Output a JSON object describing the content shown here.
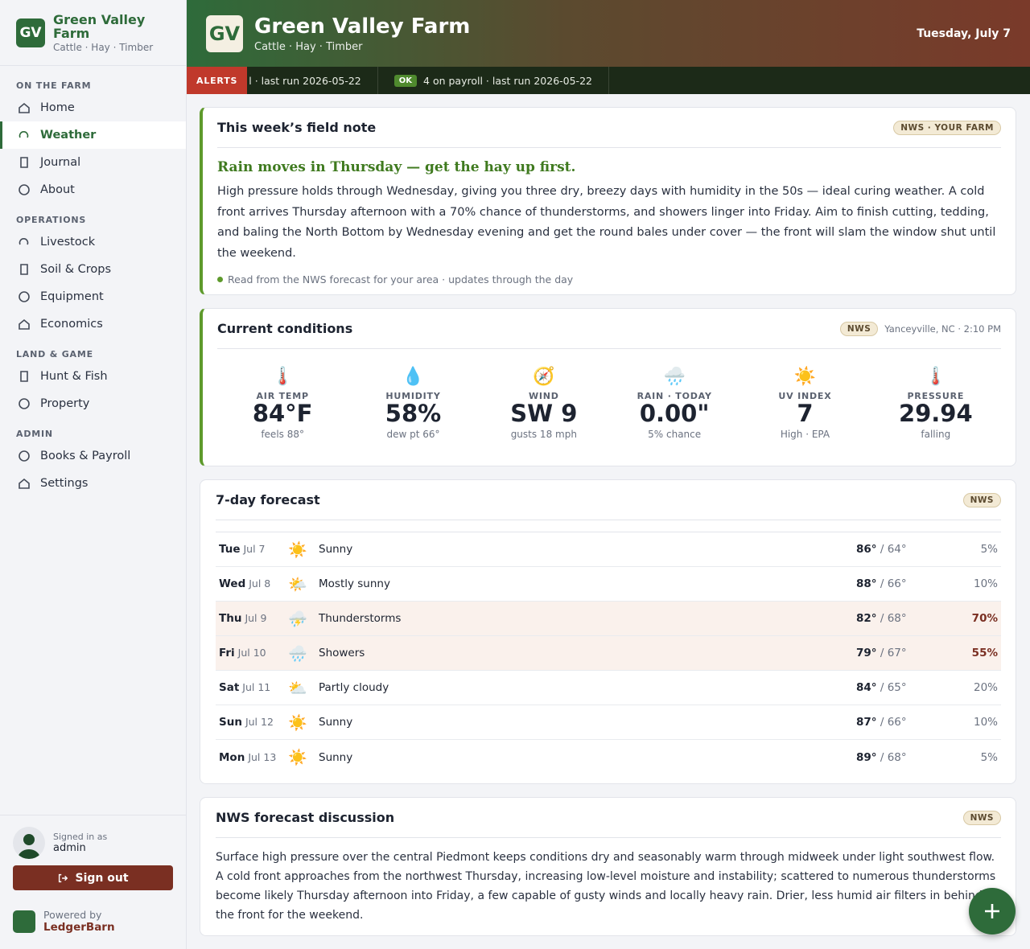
{
  "sidebar": {
    "initials": "GV",
    "name": "Green Valley Farm",
    "subtitle": "Cattle · Hay · Timber",
    "sections": [
      {
        "title": "ON THE FARM",
        "items": [
          "Home",
          "Weather",
          "Journal",
          "About"
        ]
      },
      {
        "title": "OPERATIONS",
        "items": [
          "Livestock",
          "Soil & Crops",
          "Equipment",
          "Economics"
        ]
      },
      {
        "title": "LAND & GAME",
        "items": [
          "Hunt & Fish",
          "Property"
        ]
      },
      {
        "title": "ADMIN",
        "items": [
          "Books & Payroll",
          "Settings"
        ]
      }
    ],
    "active": "Weather",
    "user": {
      "label": "Signed in as",
      "name": "admin"
    },
    "sign_out": "Sign out",
    "powered": {
      "label": "Powered by",
      "name": "LedgerBarn"
    }
  },
  "header": {
    "initials": "GV",
    "title": "Green Valley Farm",
    "subtitle": "Cattle · Hay · Timber",
    "date": "Tuesday, July 7"
  },
  "ticker": {
    "badge": "ALERTS",
    "items": [
      {
        "status": null,
        "text": "l · last run 2026-05-22"
      },
      {
        "status": "OK",
        "text": "4 on payroll · last run 2026-05-22"
      }
    ]
  },
  "field_note": {
    "title": "This week’s field note",
    "badge": "NWS · YOUR FARM",
    "headline": "Rain moves in Thursday — get the hay up first.",
    "body": "High pressure holds through Wednesday, giving you three dry, breezy days with humidity in the 50s — ideal curing weather. A cold front arrives Thursday afternoon with a 70% chance of thunderstorms, and showers linger into Friday. Aim to finish cutting, tedding, and baling the North Bottom by Wednesday evening and get the round bales under cover — the front will slam the window shut until the weekend.",
    "footnote": "Read from the NWS forecast for your area · updates through the day"
  },
  "conditions": {
    "title": "Current conditions",
    "badge": "NWS",
    "location": "Yanceyville, NC · 2:10 PM",
    "items": [
      {
        "icon": "🌡️",
        "label": "AIR TEMP",
        "value": "84°F",
        "sub": "feels 88°"
      },
      {
        "icon": "💧",
        "label": "HUMIDITY",
        "value": "58%",
        "sub": "dew pt 66°"
      },
      {
        "icon": "🧭",
        "label": "WIND",
        "value": "SW 9",
        "sub": "gusts 18 mph"
      },
      {
        "icon": "🌧️",
        "label": "RAIN · TODAY",
        "value": "0.00\"",
        "sub": "5% chance"
      },
      {
        "icon": "☀️",
        "label": "UV INDEX",
        "value": "7",
        "sub": "High · EPA"
      },
      {
        "icon": "🌡️",
        "label": "PRESSURE",
        "value": "29.94",
        "sub": "falling"
      }
    ]
  },
  "forecast": {
    "title": "7-day forecast",
    "badge": "NWS",
    "days": [
      {
        "day": "Tue",
        "date": "Jul 7",
        "icon": "☀️",
        "condition": "Sunny",
        "high": "86°",
        "low": "64°",
        "precip": "5%",
        "wet": false
      },
      {
        "day": "Wed",
        "date": "Jul 8",
        "icon": "🌤️",
        "condition": "Mostly sunny",
        "high": "88°",
        "low": "66°",
        "precip": "10%",
        "wet": false
      },
      {
        "day": "Thu",
        "date": "Jul 9",
        "icon": "⛈️",
        "condition": "Thunderstorms",
        "high": "82°",
        "low": "68°",
        "precip": "70%",
        "wet": true
      },
      {
        "day": "Fri",
        "date": "Jul 10",
        "icon": "🌧️",
        "condition": "Showers",
        "high": "79°",
        "low": "67°",
        "precip": "55%",
        "wet": true
      },
      {
        "day": "Sat",
        "date": "Jul 11",
        "icon": "⛅",
        "condition": "Partly cloudy",
        "high": "84°",
        "low": "65°",
        "precip": "20%",
        "wet": false
      },
      {
        "day": "Sun",
        "date": "Jul 12",
        "icon": "☀️",
        "condition": "Sunny",
        "high": "87°",
        "low": "66°",
        "precip": "10%",
        "wet": false
      },
      {
        "day": "Mon",
        "date": "Jul 13",
        "icon": "☀️",
        "condition": "Sunny",
        "high": "89°",
        "low": "68°",
        "precip": "5%",
        "wet": false
      }
    ]
  },
  "discussion": {
    "title": "NWS forecast discussion",
    "badge": "NWS",
    "body": "Surface high pressure over the central Piedmont keeps conditions dry and seasonably warm through midweek under light southwest flow. A cold front approaches from the northwest Thursday, increasing low-level moisture and instability; scattered to numerous thunderstorms become likely Thursday afternoon into Friday, a few capable of gusty winds and locally heavy rain. Drier, less humid air filters in behind the front for the weekend."
  }
}
